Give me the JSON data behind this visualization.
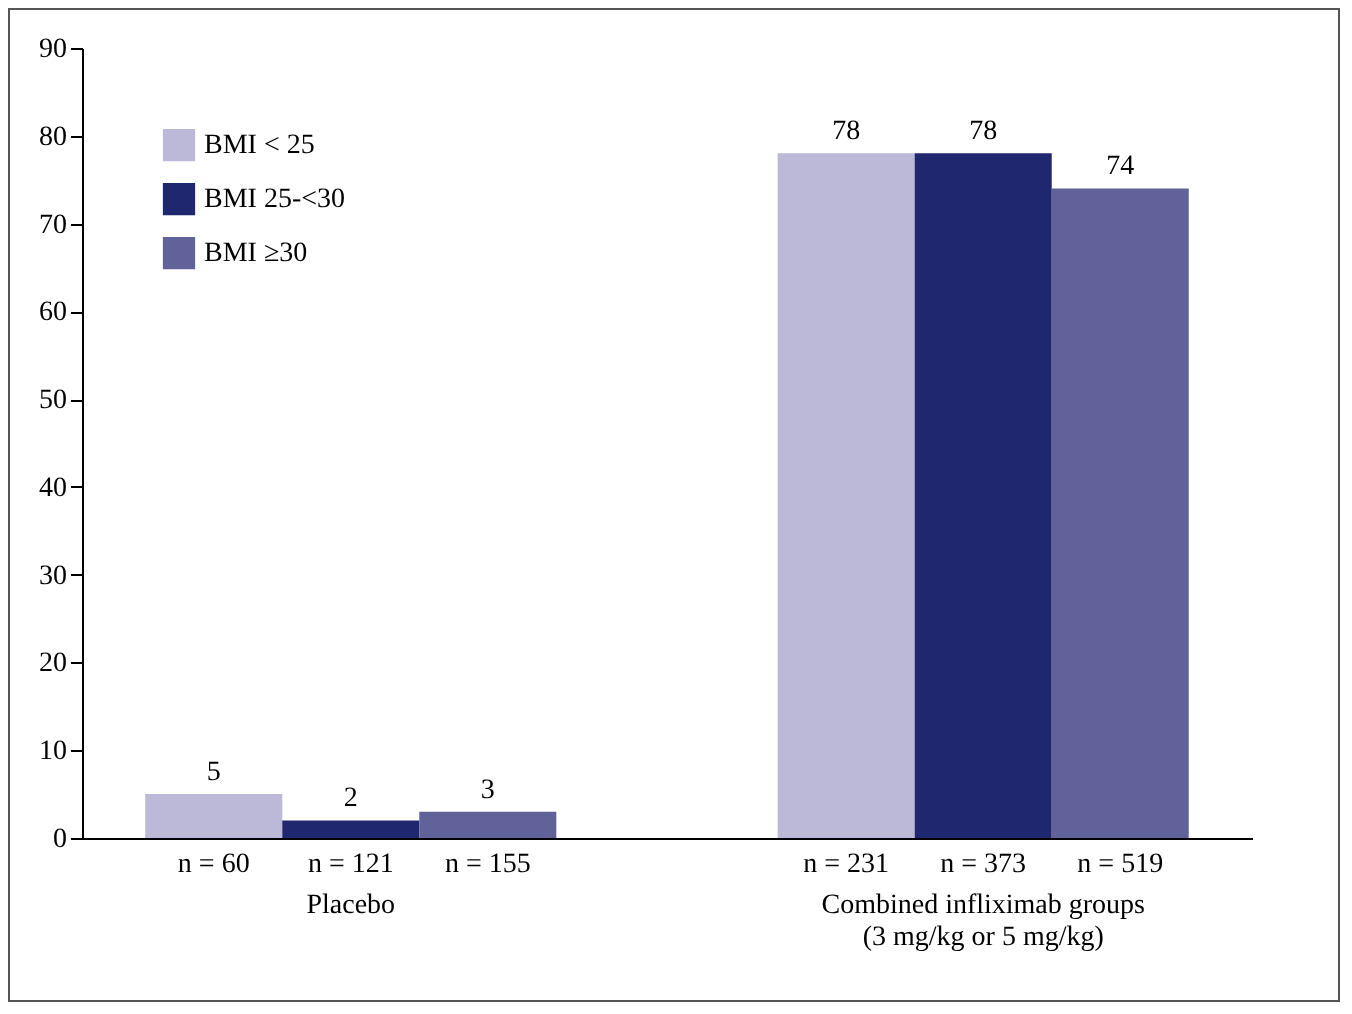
{
  "chart_data": {
    "type": "bar",
    "categories": [
      "Placebo",
      "Combined infliximab groups (3 mg/kg or 5 mg/kg)"
    ],
    "series": [
      {
        "name": "BMI < 25",
        "color": "#bbb8d8",
        "values": [
          5,
          78
        ]
      },
      {
        "name": "BMI 25-<30",
        "color": "#1f276e",
        "values": [
          2,
          78
        ]
      },
      {
        "name": "BMI ≥30",
        "color": "#62629a",
        "values": [
          3,
          74
        ]
      }
    ],
    "ylim": [
      0,
      90
    ],
    "yticks": [
      0,
      10,
      20,
      30,
      40,
      50,
      60,
      70,
      80,
      90
    ],
    "grid": false,
    "legend": "top left",
    "data_labels": true,
    "annotations": [
      "n = 60",
      "n = 121",
      "n = 155",
      "n = 231",
      "n = 373",
      "n = 519"
    ]
  }
}
